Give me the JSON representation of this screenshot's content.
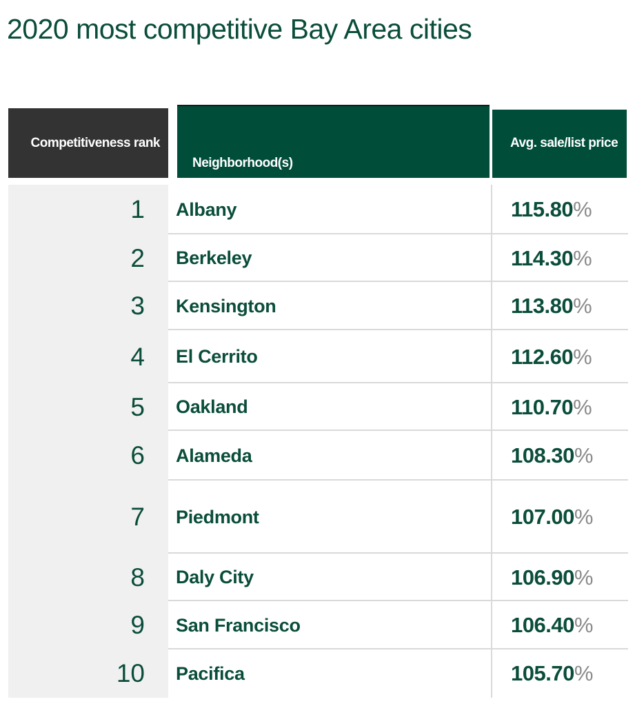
{
  "title": "2020 most competitive Bay Area cities",
  "headers": {
    "rank": "Competitiveness rank",
    "neighborhood": "Neighborhood(s)",
    "price": "Avg. sale/list price"
  },
  "colors": {
    "brand_green": "#004d3a",
    "text_green": "#0a4d3a",
    "rank_header": "#333333",
    "rank_column_bg": "#f0f0f0",
    "percent_gray": "#8a8a8a"
  },
  "chart_data": {
    "type": "table",
    "columns": [
      "Competitiveness rank",
      "Neighborhood(s)",
      "Avg. sale/list price"
    ],
    "rows": [
      {
        "rank": "1",
        "neighborhood": "Albany",
        "price": "115.80",
        "unit": "%"
      },
      {
        "rank": "2",
        "neighborhood": "Berkeley",
        "price": "114.30",
        "unit": "%"
      },
      {
        "rank": "3",
        "neighborhood": "Kensington",
        "price": "113.80",
        "unit": "%"
      },
      {
        "rank": "4",
        "neighborhood": "El Cerrito",
        "price": "112.60",
        "unit": "%"
      },
      {
        "rank": "5",
        "neighborhood": "Oakland",
        "price": "110.70",
        "unit": "%"
      },
      {
        "rank": "6",
        "neighborhood": "Alameda",
        "price": "108.30",
        "unit": "%"
      },
      {
        "rank": "7",
        "neighborhood": "Piedmont",
        "price": "107.00",
        "unit": "%"
      },
      {
        "rank": "8",
        "neighborhood": "Daly City",
        "price": "106.90",
        "unit": "%"
      },
      {
        "rank": "9",
        "neighborhood": "San Francisco",
        "price": "106.40",
        "unit": "%"
      },
      {
        "rank": "10",
        "neighborhood": "Pacifica",
        "price": "105.70",
        "unit": "%"
      }
    ]
  }
}
